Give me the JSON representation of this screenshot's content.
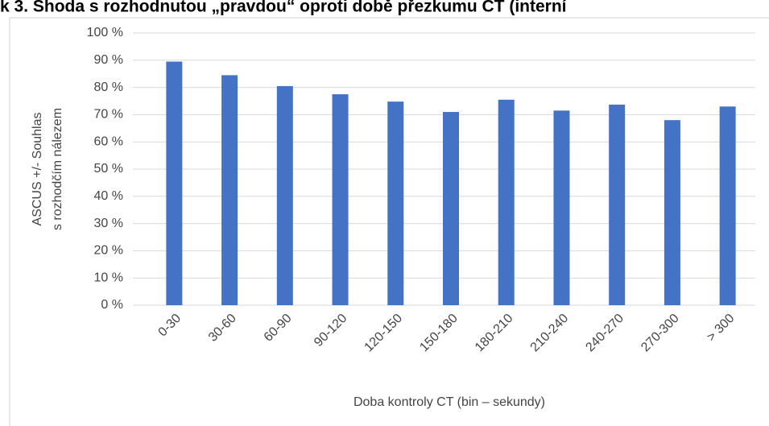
{
  "chart_data": {
    "type": "bar",
    "title": "k 3. Shoda s rozhodnutou „pravdou“ oproti době přezkumu CT (interní",
    "y_label": [
      "ASCUS +/- Souhlas",
      "s rozhodčím nálezem"
    ],
    "x_label": "Doba kontroly CT (bin – sekundy)",
    "categories": [
      "0-30",
      "30-60",
      "60-90",
      "90-120",
      "120-150",
      "150-180",
      "180-210",
      "210-240",
      "240-270",
      "270-300",
      "> 300"
    ],
    "values": [
      89.5,
      84.5,
      80.5,
      77.5,
      74.8,
      71,
      75.5,
      71.5,
      73.7,
      68,
      73
    ],
    "color": "#4472c4",
    "ylim": [
      0,
      100
    ],
    "yticks": [
      {
        "value": 0,
        "label": "0 %"
      },
      {
        "value": 10,
        "label": "10 %"
      },
      {
        "value": 20,
        "label": "20 %"
      },
      {
        "value": 30,
        "label": "30 %"
      },
      {
        "value": 40,
        "label": "40 %"
      },
      {
        "value": 50,
        "label": "50 %"
      },
      {
        "value": 60,
        "label": "60 %"
      },
      {
        "value": 70,
        "label": "70 %"
      },
      {
        "value": 80,
        "label": "80 %"
      },
      {
        "value": 90,
        "label": "90 %"
      },
      {
        "value": 100,
        "label": "100 %"
      }
    ],
    "grid": true
  }
}
